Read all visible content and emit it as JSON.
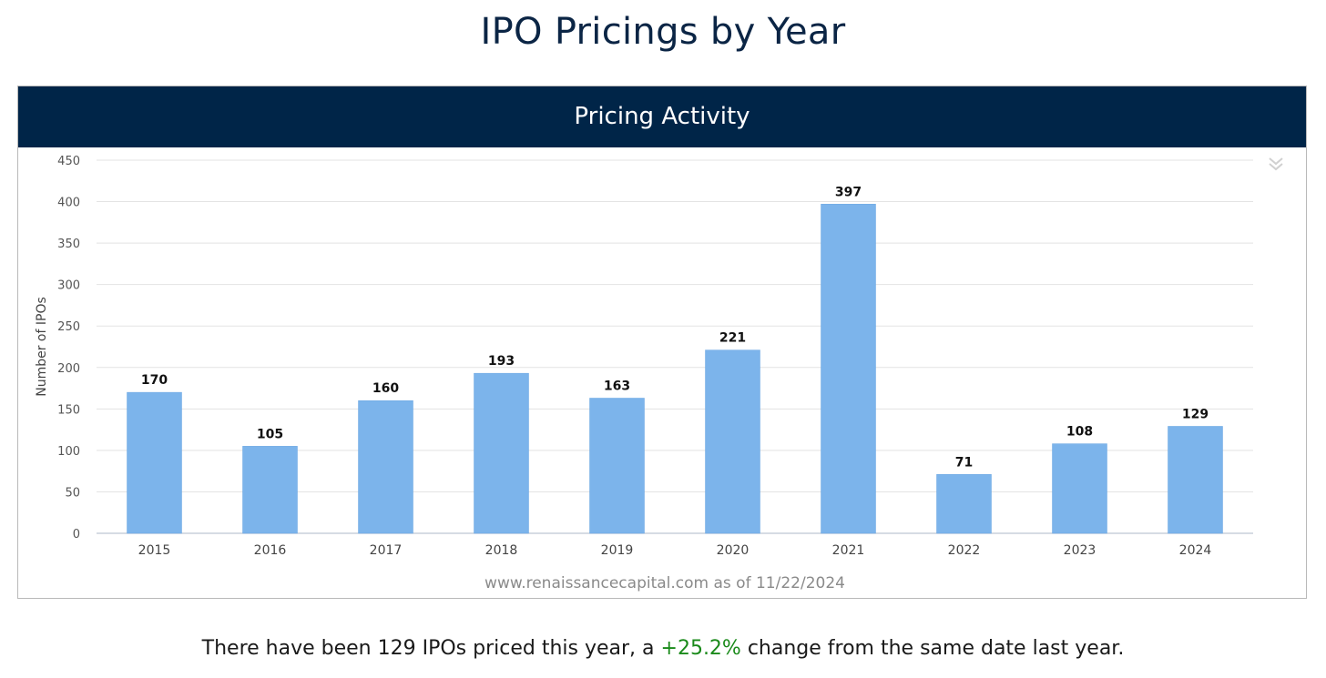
{
  "page": {
    "title": "IPO Pricings by Year"
  },
  "chart_header": "Pricing Activity",
  "menu_icon": "double-chevron-down-icon",
  "chart_data": {
    "type": "bar",
    "title": "Pricing Activity",
    "categories": [
      "2015",
      "2016",
      "2017",
      "2018",
      "2019",
      "2020",
      "2021",
      "2022",
      "2023",
      "2024"
    ],
    "values": [
      170,
      105,
      160,
      193,
      163,
      221,
      397,
      71,
      108,
      129
    ],
    "data_labels": [
      "170",
      "105",
      "160",
      "193",
      "163",
      "221",
      "397",
      "71",
      "108",
      "129"
    ],
    "xlabel": "",
    "ylabel": "Number of IPOs",
    "ylim": [
      0,
      450
    ],
    "yticks": [
      0,
      50,
      100,
      150,
      200,
      250,
      300,
      350,
      400,
      450
    ],
    "ytick_labels": [
      "0",
      "50",
      "100",
      "150",
      "200",
      "250",
      "300",
      "350",
      "400",
      "450"
    ],
    "grid": true,
    "bar_color": "#7cb4eb",
    "credit": "www.renaissancecapital.com as of 11/22/2024"
  },
  "summary": {
    "prefix": "There have been 129 IPOs priced this year, a ",
    "change": "+25.2%",
    "suffix": " change from the same date last year.",
    "change_color": "#1a8a1a"
  }
}
